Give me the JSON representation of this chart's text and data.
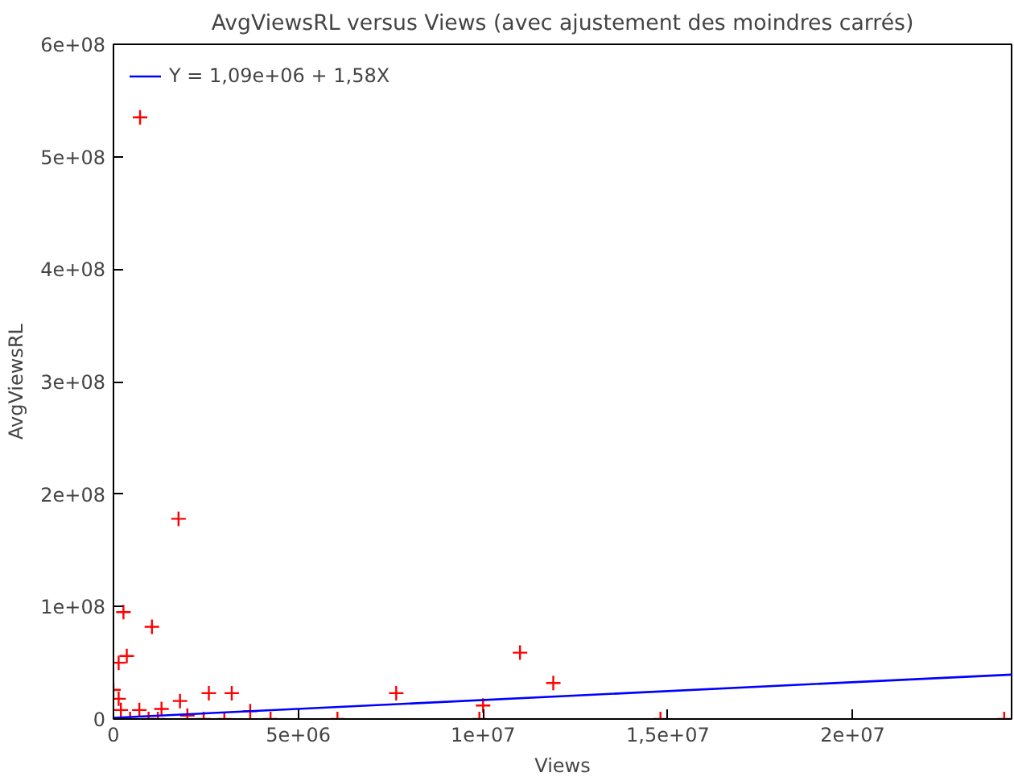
{
  "chart_data": {
    "type": "scatter",
    "title": "AvgViewsRL versus Views (avec ajustement des moindres carrés)",
    "xlabel": "Views",
    "ylabel": "AvgViewsRL",
    "xlim": [
      0,
      24300000
    ],
    "ylim": [
      0,
      600000000
    ],
    "xticks": [
      0,
      {
        "value": 5000000,
        "label": "5e+06"
      },
      {
        "value": 10000000,
        "label": "1e+07"
      },
      {
        "value": 15000000,
        "label": "1,5e+07"
      },
      {
        "value": 20000000,
        "label": "2e+07"
      }
    ],
    "yticks": [
      0,
      {
        "value": 100000000,
        "label": "1e+08"
      },
      {
        "value": 200000000,
        "label": "2e+08"
      },
      {
        "value": 300000000,
        "label": "3e+08"
      },
      {
        "value": 400000000,
        "label": "4e+08"
      },
      {
        "value": 500000000,
        "label": "5e+08"
      },
      {
        "value": 600000000,
        "label": "6e+08"
      }
    ],
    "grid": false,
    "legend": "top left",
    "marker": "cross",
    "series": [
      {
        "color": "#ff0000",
        "x": [
          720000,
          1760000,
          1040000,
          270000,
          140000,
          360000,
          0,
          140000,
          2580000,
          3200000,
          7650000,
          11000000,
          11900000,
          10000000,
          9900000,
          14800000,
          24100000,
          1800000,
          1300000,
          3700000,
          4250000,
          6060000,
          3000000,
          2440000,
          200000,
          450000,
          700000,
          950000,
          1200000,
          2000000
        ],
        "values": [
          535000000,
          178000000,
          82000000,
          95000000,
          50000000,
          56000000,
          26000000,
          18000000,
          23000000,
          23000000,
          23000000,
          59000000,
          32000000,
          12000000,
          0,
          0,
          0,
          16000000,
          9000000,
          7000000,
          0,
          0,
          0,
          0,
          8000000,
          0,
          8000000,
          0,
          0,
          3000000
        ]
      },
      {
        "type": "line",
        "marker": "none",
        "name": "Y = 1,09e+06 + 1,58X",
        "color": "#0000ff",
        "x": [
          0,
          24300000
        ],
        "values": [
          1100000,
          39500000
        ]
      }
    ]
  }
}
